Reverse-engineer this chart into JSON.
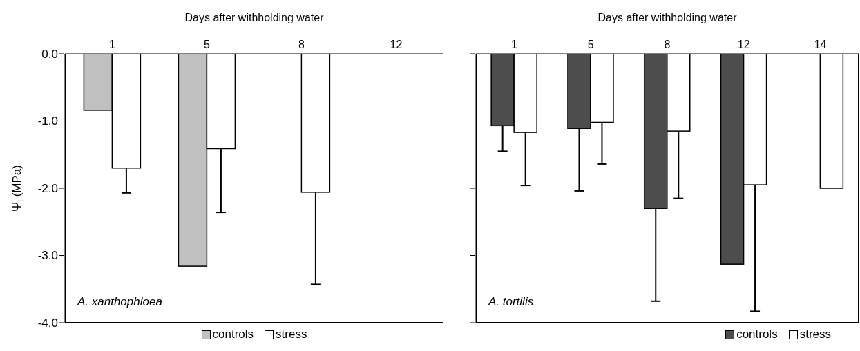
{
  "chart_data": [
    {
      "type": "bar",
      "xlabel": "Days after withholding water",
      "ylabel": "Ψ$_{l}$ (MPa)",
      "categories": [
        "1",
        "5",
        "8",
        "12"
      ],
      "series": [
        {
          "name": "controls",
          "color": "#c0c0c0",
          "values": [
            -0.84,
            -3.16,
            null,
            null
          ]
        },
        {
          "name": "stress",
          "color": "#ffffff",
          "values": [
            -1.7,
            -1.41,
            -2.06,
            null
          ],
          "errors": [
            [
              -2.07,
              -1.7
            ],
            [
              -2.36,
              -1.41
            ],
            [
              -3.43,
              -2.06
            ],
            null
          ]
        }
      ],
      "ylim": [
        -4,
        0
      ],
      "yticks": [
        {
          "value": 0,
          "label": "0.0"
        },
        {
          "value": -1,
          "label": "-1.0"
        },
        {
          "value": -2,
          "label": "-2.0"
        },
        {
          "value": -3,
          "label": "-3.0"
        },
        {
          "value": -4,
          "label": "-4.0"
        }
      ],
      "annotations": [
        "A. xanthophloea"
      ],
      "legend": "bottom",
      "grid": false
    },
    {
      "type": "bar",
      "xlabel": "Days after withholding water",
      "categories": [
        "1",
        "5",
        "8",
        "12",
        "14"
      ],
      "series": [
        {
          "name": "controls",
          "color": "#4d4d4d",
          "values": [
            -1.07,
            -1.11,
            -2.3,
            -3.13,
            null
          ],
          "errors": [
            [
              -1.45,
              -1.07
            ],
            [
              -2.04,
              -1.11
            ],
            [
              -3.68,
              -2.3
            ],
            null,
            null
          ]
        },
        {
          "name": "stress",
          "color": "#ffffff",
          "values": [
            -1.17,
            -1.02,
            -1.15,
            -1.95,
            -2.0
          ],
          "errors": [
            [
              -1.96,
              -1.17
            ],
            [
              -1.64,
              -1.02
            ],
            [
              -2.15,
              -1.15
            ],
            [
              -3.83,
              -1.95
            ],
            null
          ]
        }
      ],
      "ylim": [
        -4,
        0
      ],
      "yticks": [
        0,
        -1,
        -2,
        -3,
        -4
      ],
      "tick_labels": "x",
      "annotations": [
        "A. tortilis"
      ],
      "legend": "bottom right",
      "grid": false
    }
  ]
}
